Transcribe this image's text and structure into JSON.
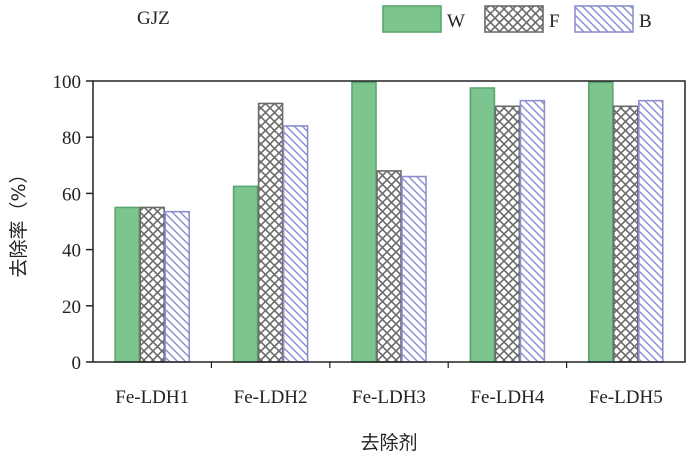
{
  "chart_data": {
    "type": "bar",
    "title": "GJZ",
    "xlabel": "去除剂",
    "ylabel": "去除率（%）",
    "categories": [
      "Fe-LDH1",
      "Fe-LDH2",
      "Fe-LDH3",
      "Fe-LDH4",
      "Fe-LDH5"
    ],
    "series": [
      {
        "name": "W",
        "values": [
          55,
          62.5,
          99.5,
          97.5,
          99.5
        ],
        "style": "solid",
        "fill": "#7dc58f",
        "stroke": "#5aa56d"
      },
      {
        "name": "F",
        "values": [
          55,
          92,
          68,
          91,
          91
        ],
        "style": "crosshatch",
        "fill": "#ffffff",
        "stroke": "#6b6b6b"
      },
      {
        "name": "B",
        "values": [
          53.5,
          84,
          66,
          93,
          93
        ],
        "style": "diagonal",
        "fill": "#ffffff",
        "stroke": "#8c8fd0"
      }
    ],
    "ylim": [
      0,
      100
    ],
    "yticks": [
      0,
      20,
      40,
      60,
      80,
      100
    ],
    "legend_position": "top-right",
    "grid": false
  }
}
